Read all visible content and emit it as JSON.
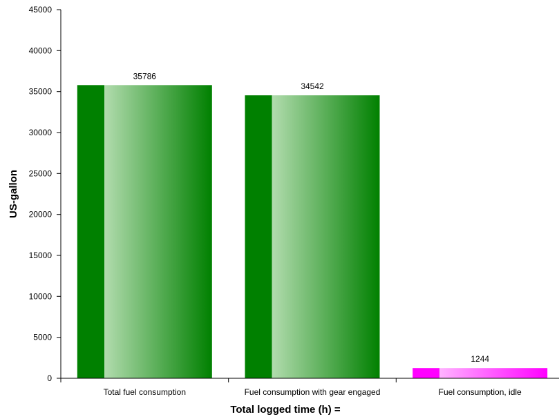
{
  "chart_data": {
    "type": "bar",
    "categories": [
      "Total fuel consumption",
      "Fuel consumption with gear engaged",
      "Fuel consumption, idle"
    ],
    "values": [
      35786,
      34542,
      1244
    ],
    "data_labels": [
      "35786",
      "34542",
      "1244"
    ],
    "xlabel": "Total logged time (h) =",
    "ylabel": "US-gallon",
    "ylim": [
      0,
      45000
    ],
    "yticks": [
      0,
      5000,
      10000,
      15000,
      20000,
      25000,
      30000,
      35000,
      40000,
      45000
    ],
    "ytick_labels": [
      "0",
      "5000",
      "10000",
      "15000",
      "20000",
      "25000",
      "30000",
      "35000",
      "40000",
      "45000"
    ],
    "grid": false,
    "legend": "none",
    "colors": [
      "#008000",
      "#008000",
      "#ff00ff"
    ],
    "highlight_colors": [
      "#b2dcae",
      "#b2dcae",
      "#ffb3ff"
    ]
  }
}
